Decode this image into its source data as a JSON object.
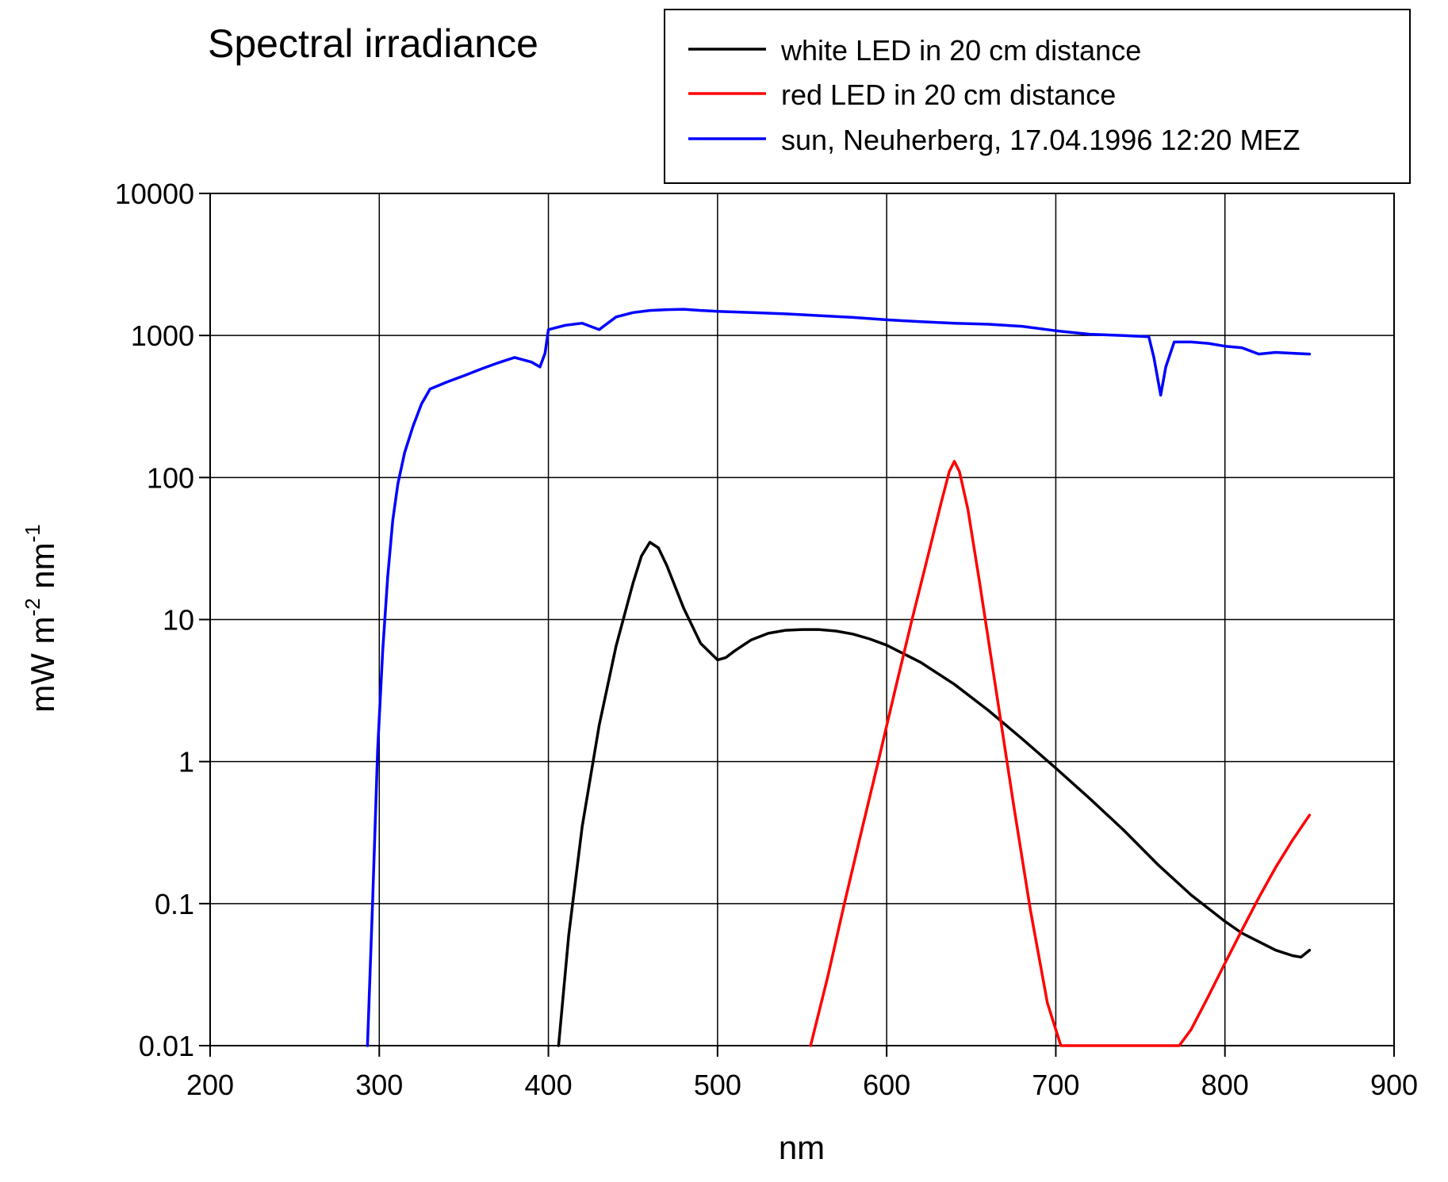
{
  "chart_data": {
    "type": "line",
    "title": "Spectral irradiance",
    "xlabel": "nm",
    "ylabel": {
      "base": "mW m",
      "exp1": "-2",
      "mid": " nm",
      "exp2": "-1"
    },
    "xlim": [
      200,
      900
    ],
    "ylim": [
      0.01,
      10000
    ],
    "yscale": "log",
    "grid": true,
    "legend_position": "top-right",
    "x_ticks": [
      200,
      300,
      400,
      500,
      600,
      700,
      800,
      900
    ],
    "y_ticks": [
      0.01,
      0.1,
      1,
      10,
      100,
      1000,
      10000
    ],
    "x_tick_labels": [
      "200",
      "300",
      "400",
      "500",
      "600",
      "700",
      "800",
      "900"
    ],
    "y_tick_labels": [
      "0.01",
      "0.1",
      "1",
      "10",
      "100",
      "1000",
      "10000"
    ],
    "series": [
      {
        "name": "white LED in 20 cm distance",
        "color": "#000000",
        "x": [
          406,
          412,
          420,
          430,
          440,
          450,
          455,
          460,
          465,
          470,
          480,
          490,
          500,
          505,
          510,
          520,
          530,
          540,
          550,
          560,
          570,
          580,
          590,
          600,
          620,
          640,
          660,
          680,
          700,
          720,
          740,
          760,
          780,
          800,
          810,
          820,
          830,
          840,
          845,
          850
        ],
        "y": [
          0.01,
          0.06,
          0.35,
          1.8,
          6.5,
          18,
          28,
          35,
          32,
          24,
          12,
          6.8,
          5.2,
          5.4,
          6.0,
          7.2,
          8.0,
          8.4,
          8.5,
          8.5,
          8.3,
          7.9,
          7.3,
          6.6,
          5.0,
          3.5,
          2.3,
          1.45,
          0.9,
          0.55,
          0.33,
          0.19,
          0.115,
          0.075,
          0.062,
          0.054,
          0.047,
          0.043,
          0.042,
          0.047
        ]
      },
      {
        "name": "red LED in 20 cm distance",
        "color": "#ff0000",
        "x": [
          555,
          565,
          575,
          585,
          595,
          605,
          615,
          625,
          632,
          637,
          640,
          643,
          648,
          655,
          665,
          675,
          685,
          695,
          703,
          773,
          780,
          790,
          800,
          810,
          820,
          830,
          840,
          850
        ],
        "y": [
          0.01,
          0.03,
          0.1,
          0.32,
          1.0,
          3.2,
          10,
          30,
          65,
          110,
          130,
          110,
          60,
          18,
          3.0,
          0.5,
          0.09,
          0.02,
          0.01,
          0.01,
          0.013,
          0.022,
          0.038,
          0.065,
          0.11,
          0.18,
          0.28,
          0.42
        ]
      },
      {
        "name": "sun, Neuherberg, 17.04.1996 12:20 MEZ",
        "color": "#0000ff",
        "x": [
          293,
          296,
          299,
          302,
          305,
          308,
          311,
          315,
          320,
          325,
          330,
          340,
          350,
          360,
          370,
          380,
          390,
          395,
          398,
          400,
          410,
          420,
          430,
          440,
          450,
          460,
          470,
          480,
          490,
          500,
          520,
          540,
          560,
          580,
          600,
          620,
          640,
          660,
          680,
          700,
          720,
          740,
          755,
          758,
          762,
          765,
          770,
          780,
          790,
          800,
          810,
          820,
          830,
          840,
          850
        ],
        "y": [
          0.01,
          0.1,
          1.2,
          6,
          20,
          50,
          90,
          150,
          230,
          330,
          420,
          470,
          520,
          580,
          640,
          700,
          650,
          600,
          750,
          1100,
          1180,
          1220,
          1100,
          1350,
          1450,
          1500,
          1520,
          1530,
          1500,
          1480,
          1450,
          1420,
          1380,
          1340,
          1290,
          1250,
          1220,
          1200,
          1160,
          1080,
          1020,
          1000,
          980,
          700,
          380,
          600,
          900,
          900,
          880,
          840,
          820,
          740,
          760,
          750,
          740
        ]
      }
    ]
  }
}
